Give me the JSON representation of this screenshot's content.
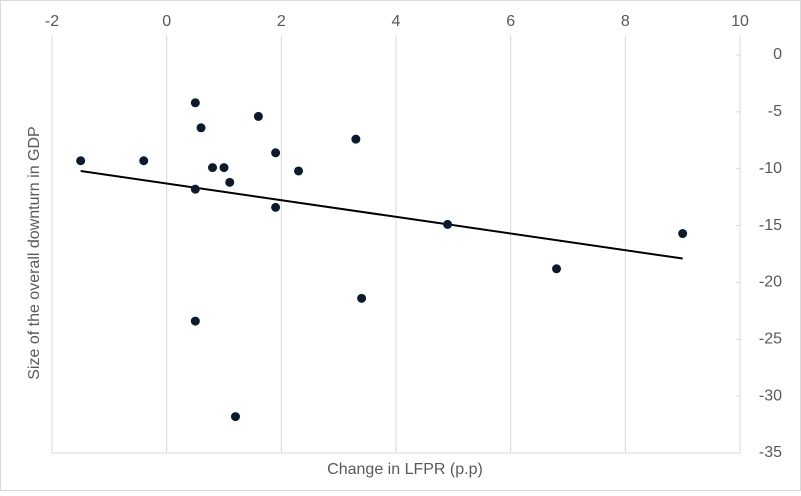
{
  "chart_data": {
    "type": "scatter",
    "x_label": "Change in LFPR (p.p)",
    "y_label": "Size of the overall downturn in GDP",
    "x": [
      -1.5,
      -0.4,
      0.5,
      0.6,
      0.8,
      1.0,
      1.1,
      0.5,
      1.6,
      1.9,
      1.9,
      2.3,
      3.3,
      3.4,
      4.9,
      6.8,
      9.0,
      0.5,
      1.2
    ],
    "values": [
      -9.3,
      -9.3,
      -4.2,
      -6.4,
      -9.9,
      -9.9,
      -11.2,
      -11.8,
      -5.4,
      -8.6,
      -13.4,
      -10.2,
      -7.4,
      -21.4,
      -14.9,
      -18.8,
      -15.7,
      -23.4,
      -31.8
    ],
    "color": "#0d1a2b",
    "trendline": {
      "x": [
        -1.5,
        9.0
      ],
      "values": [
        -10.2,
        -17.9
      ],
      "color": "#000000"
    },
    "xlim": [
      -2,
      10
    ],
    "xticks": [
      -2,
      0,
      2,
      4,
      6,
      8,
      10
    ],
    "ylim": [
      -35,
      0
    ],
    "yticks": [
      0,
      -5,
      -10,
      -15,
      -20,
      -25,
      -30,
      -35
    ],
    "grid": true
  }
}
